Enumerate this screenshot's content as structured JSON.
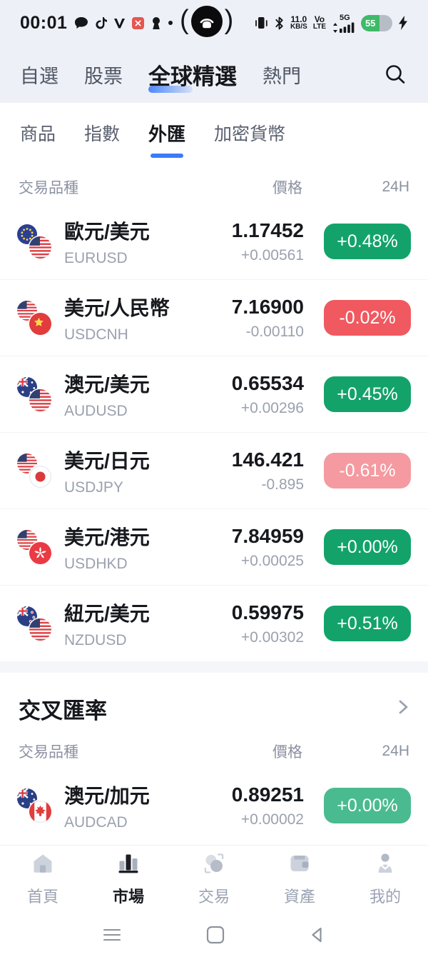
{
  "status_bar": {
    "time": "00:01",
    "left_icons": [
      "chat-bubble-icon",
      "tiktok-icon",
      "v-app-icon",
      "x-badge-icon",
      "keyhole-icon",
      "notification-dot"
    ],
    "camera": {
      "open": "(",
      "close": ")",
      "icon": "screencast-icon"
    },
    "net": {
      "kbps": "11.0",
      "kbps_unit": "KB/S",
      "vo": "Vo",
      "lte": "LTE",
      "g": "5G"
    },
    "battery": {
      "level": "55"
    },
    "right_icons": [
      "vibrate-icon",
      "bluetooth-icon",
      "signal-bars-icon",
      "battery-icon",
      "charging-bolt-icon"
    ]
  },
  "top_tabs": {
    "items": [
      {
        "id": "watchlist",
        "label": "自選",
        "active": false
      },
      {
        "id": "stocks",
        "label": "股票",
        "active": false
      },
      {
        "id": "global-picks",
        "label": "全球精選",
        "active": true
      },
      {
        "id": "hot",
        "label": "熱門",
        "active": false
      }
    ],
    "search_icon": "search-icon"
  },
  "sub_tabs": {
    "items": [
      {
        "id": "commodities",
        "label": "商品",
        "active": false
      },
      {
        "id": "indices",
        "label": "指數",
        "active": false
      },
      {
        "id": "forex",
        "label": "外匯",
        "active": true
      },
      {
        "id": "crypto",
        "label": "加密貨幣",
        "active": false
      }
    ]
  },
  "table_header": {
    "instrument": "交易品種",
    "price": "價格",
    "range": "24H"
  },
  "forex_list": [
    {
      "name": "歐元/美元",
      "code": "EURUSD",
      "price": "1.17452",
      "change": "+0.00561",
      "pct": "+0.48%",
      "tone": "green",
      "flags": [
        "eu",
        "us"
      ]
    },
    {
      "name": "美元/人民幣",
      "code": "USDCNH",
      "price": "7.16900",
      "change": "-0.00110",
      "pct": "-0.02%",
      "tone": "red",
      "flags": [
        "us",
        "cn"
      ]
    },
    {
      "name": "澳元/美元",
      "code": "AUDUSD",
      "price": "0.65534",
      "change": "+0.00296",
      "pct": "+0.45%",
      "tone": "green",
      "flags": [
        "au",
        "us"
      ]
    },
    {
      "name": "美元/日元",
      "code": "USDJPY",
      "price": "146.421",
      "change": "-0.895",
      "pct": "-0.61%",
      "tone": "red_light",
      "flags": [
        "us",
        "jp"
      ]
    },
    {
      "name": "美元/港元",
      "code": "USDHKD",
      "price": "7.84959",
      "change": "+0.00025",
      "pct": "+0.00%",
      "tone": "green",
      "flags": [
        "us",
        "hk"
      ]
    },
    {
      "name": "紐元/美元",
      "code": "NZDUSD",
      "price": "0.59975",
      "change": "+0.00302",
      "pct": "+0.51%",
      "tone": "green",
      "flags": [
        "nz",
        "us"
      ]
    }
  ],
  "cross_section": {
    "title": "交叉匯率",
    "chevron_icon": "chevron-right-icon",
    "rows": [
      {
        "name": "澳元/加元",
        "code": "AUDCAD",
        "price": "0.89251",
        "change": "+0.00002",
        "pct": "+0.00%",
        "tone": "green_light",
        "flags": [
          "au",
          "ca"
        ]
      }
    ]
  },
  "tab_bar": {
    "items": [
      {
        "id": "home",
        "label": "首頁",
        "icon": "home-icon",
        "active": false
      },
      {
        "id": "market",
        "label": "市場",
        "icon": "market-chart-icon",
        "active": true
      },
      {
        "id": "trade",
        "label": "交易",
        "icon": "trade-circles-icon",
        "active": false
      },
      {
        "id": "assets",
        "label": "資產",
        "icon": "wallet-icon",
        "active": false
      },
      {
        "id": "profile",
        "label": "我的",
        "icon": "person-icon",
        "active": false
      }
    ]
  },
  "android_nav": [
    "menu-icon",
    "square-icon",
    "back-triangle-icon"
  ],
  "colors": {
    "green": "#13a36a",
    "green_light": "#4abb90",
    "red": "#f0595f",
    "red_light": "#f49aa0",
    "accent_blue": "#3b7bfa",
    "page_top_bg": "#edf0f6"
  }
}
